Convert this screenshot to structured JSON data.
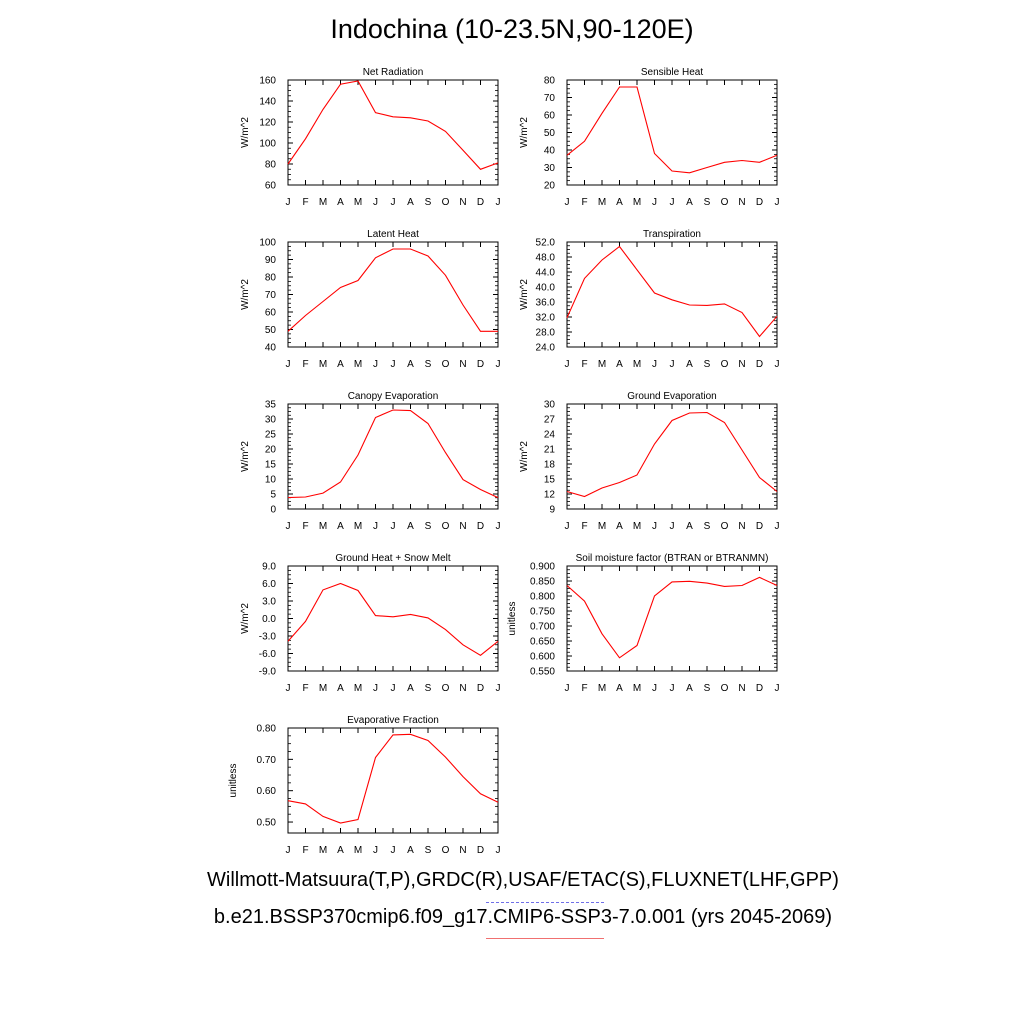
{
  "page": {
    "title": "Indochina (10-23.5N,90-120E)"
  },
  "legend": {
    "observations": "Willmott-Matsuura(T,P),GRDC(R),USAF/ETAC(S),FLUXNET(LHF,GPP)",
    "model": "b.e21.BSSP370cmip6.f09_g17.CMIP6-SSP3-7.0.001 (yrs 2045-2069)",
    "observations_style": "dashed",
    "observations_color": "#6f6fe8",
    "model_color": "#f07070"
  },
  "chart_data": [
    {
      "type": "line",
      "title": "Net Radiation",
      "ylabel": "W/m^2",
      "categories": [
        "J",
        "F",
        "M",
        "A",
        "M",
        "J",
        "J",
        "A",
        "S",
        "O",
        "N",
        "D",
        "J"
      ],
      "ylim": [
        60,
        160
      ],
      "yticks": [
        "60",
        "80",
        "100",
        "120",
        "140",
        "160"
      ],
      "series": [
        {
          "color": "#ff0000",
          "values": [
            80,
            104,
            132,
            156,
            159,
            129,
            125,
            124,
            121,
            111,
            93,
            75,
            81
          ]
        }
      ]
    },
    {
      "type": "line",
      "title": "Sensible Heat",
      "ylabel": "W/m^2",
      "categories": [
        "J",
        "F",
        "M",
        "A",
        "M",
        "J",
        "J",
        "A",
        "S",
        "O",
        "N",
        "D",
        "J"
      ],
      "ylim": [
        20,
        80
      ],
      "yticks": [
        "20",
        "30",
        "40",
        "50",
        "60",
        "70",
        "80"
      ],
      "series": [
        {
          "color": "#ff0000",
          "values": [
            37,
            45,
            61,
            76,
            76,
            38,
            28,
            27,
            30,
            33,
            34,
            33,
            37
          ]
        }
      ]
    },
    {
      "type": "line",
      "title": "Latent Heat",
      "ylabel": "W/m^2",
      "categories": [
        "J",
        "F",
        "M",
        "A",
        "M",
        "J",
        "J",
        "A",
        "S",
        "O",
        "N",
        "D",
        "J"
      ],
      "ylim": [
        40,
        100
      ],
      "yticks": [
        "40",
        "50",
        "60",
        "70",
        "80",
        "90",
        "100"
      ],
      "series": [
        {
          "color": "#ff0000",
          "values": [
            49,
            58,
            66,
            74,
            78,
            91,
            96,
            96,
            92,
            81,
            64,
            49,
            49
          ]
        }
      ]
    },
    {
      "type": "line",
      "title": "Transpiration",
      "ylabel": "W/m^2",
      "categories": [
        "J",
        "F",
        "M",
        "A",
        "M",
        "J",
        "J",
        "A",
        "S",
        "O",
        "N",
        "D",
        "J"
      ],
      "ylim": [
        24,
        52
      ],
      "yticks": [
        "24.0",
        "28.0",
        "32.0",
        "36.0",
        "40.0",
        "44.0",
        "48.0",
        "52.0"
      ],
      "series": [
        {
          "color": "#ff0000",
          "values": [
            31.8,
            42.3,
            47.2,
            50.8,
            44.6,
            38.4,
            36.6,
            35.2,
            35.1,
            35.5,
            33.2,
            26.8,
            32.2
          ]
        }
      ]
    },
    {
      "type": "line",
      "title": "Canopy Evaporation",
      "ylabel": "W/m^2",
      "categories": [
        "J",
        "F",
        "M",
        "A",
        "M",
        "J",
        "J",
        "A",
        "S",
        "O",
        "N",
        "D",
        "J"
      ],
      "ylim": [
        0,
        35
      ],
      "yticks": [
        "0",
        "5",
        "10",
        "15",
        "20",
        "25",
        "30",
        "35"
      ],
      "series": [
        {
          "color": "#ff0000",
          "values": [
            3.8,
            4.0,
            5.3,
            9.0,
            18.0,
            30.5,
            33.0,
            32.8,
            28.5,
            18.8,
            9.8,
            6.5,
            3.8
          ]
        }
      ]
    },
    {
      "type": "line",
      "title": "Ground Evaporation",
      "ylabel": "W/m^2",
      "categories": [
        "J",
        "F",
        "M",
        "A",
        "M",
        "J",
        "J",
        "A",
        "S",
        "O",
        "N",
        "D",
        "J"
      ],
      "ylim": [
        9,
        30
      ],
      "yticks": [
        "9",
        "12",
        "15",
        "18",
        "21",
        "24",
        "27",
        "30"
      ],
      "series": [
        {
          "color": "#ff0000",
          "values": [
            12.5,
            11.5,
            13.2,
            14.3,
            15.8,
            22.0,
            26.7,
            28.2,
            28.3,
            26.3,
            20.8,
            15.3,
            12.5
          ]
        }
      ]
    },
    {
      "type": "line",
      "title": "Ground Heat + Snow Melt",
      "ylabel": "W/m^2",
      "categories": [
        "J",
        "F",
        "M",
        "A",
        "M",
        "J",
        "J",
        "A",
        "S",
        "O",
        "N",
        "D",
        "J"
      ],
      "ylim": [
        -9,
        9
      ],
      "yticks": [
        "-9.0",
        "-6.0",
        "-3.0",
        "0.0",
        "3.0",
        "6.0",
        "9.0"
      ],
      "series": [
        {
          "color": "#ff0000",
          "values": [
            -3.9,
            -0.5,
            4.9,
            6.0,
            4.8,
            0.5,
            0.3,
            0.7,
            0.1,
            -1.9,
            -4.5,
            -6.3,
            -3.9
          ]
        }
      ]
    },
    {
      "type": "line",
      "title": "Soil moisture factor (BTRAN or BTRANMN)",
      "ylabel": "unitless",
      "categories": [
        "J",
        "F",
        "M",
        "A",
        "M",
        "J",
        "J",
        "A",
        "S",
        "O",
        "N",
        "D",
        "J"
      ],
      "ylim": [
        0.55,
        0.9
      ],
      "yticks": [
        "0.550",
        "0.600",
        "0.650",
        "0.700",
        "0.750",
        "0.800",
        "0.850",
        "0.900"
      ],
      "series": [
        {
          "color": "#ff0000",
          "values": [
            0.835,
            0.783,
            0.674,
            0.594,
            0.635,
            0.8,
            0.847,
            0.849,
            0.843,
            0.832,
            0.835,
            0.862,
            0.835
          ]
        }
      ]
    },
    {
      "type": "line",
      "title": "Evaporative Fraction",
      "ylabel": "unitless",
      "categories": [
        "J",
        "F",
        "M",
        "A",
        "M",
        "J",
        "J",
        "A",
        "S",
        "O",
        "N",
        "D",
        "J"
      ],
      "ylim": [
        0.465,
        0.8
      ],
      "yticks": [
        "0.50",
        "0.60",
        "0.70",
        "0.80"
      ],
      "series": [
        {
          "color": "#ff0000",
          "values": [
            0.568,
            0.558,
            0.518,
            0.497,
            0.508,
            0.706,
            0.778,
            0.78,
            0.76,
            0.707,
            0.645,
            0.59,
            0.563
          ]
        }
      ]
    }
  ]
}
